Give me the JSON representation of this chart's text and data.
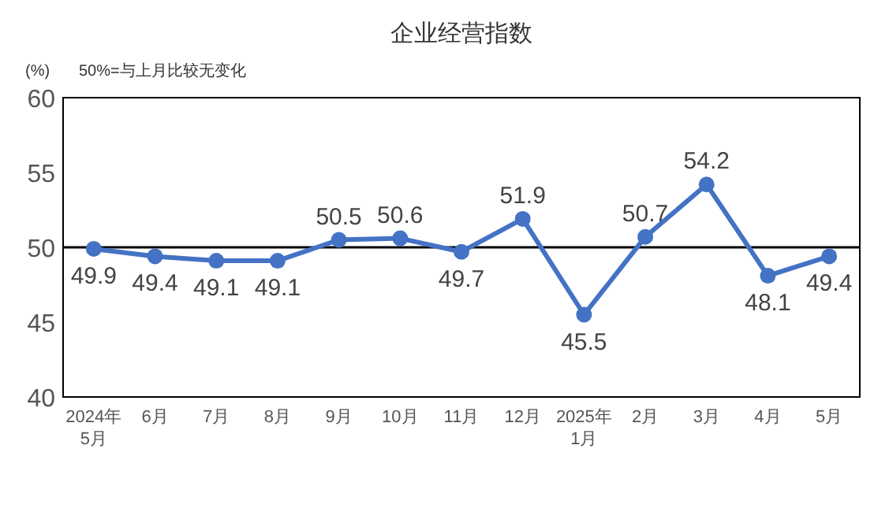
{
  "chart_data": {
    "type": "line",
    "title": "企业经营指数",
    "ylabel": "(%)",
    "annotations": [
      "50%=与上月比较无变化"
    ],
    "categories": [
      "2024年\n5月",
      "6月",
      "7月",
      "8月",
      "9月",
      "10月",
      "11月",
      "12月",
      "2025年\n1月",
      "2月",
      "3月",
      "4月",
      "5月"
    ],
    "series": [
      {
        "color": "#4472c4",
        "values": [
          49.9,
          49.4,
          49.1,
          49.1,
          50.5,
          50.6,
          49.7,
          51.9,
          45.5,
          50.7,
          54.2,
          48.1,
          49.4
        ]
      }
    ],
    "ylim": [
      40,
      60
    ],
    "yticks": [
      40,
      45,
      50,
      55,
      60
    ],
    "grid": false,
    "marker": "circle",
    "line_style": "solid",
    "data_labels": true,
    "ref_lines": [
      {
        "axis": "y",
        "value": 50,
        "color": "#000000"
      }
    ]
  }
}
